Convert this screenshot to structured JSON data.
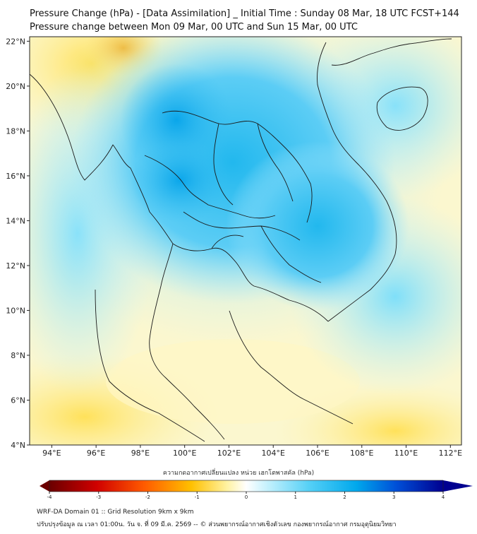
{
  "title": {
    "line1": "Pressure Change (hPa) - [Data Assimilation] _ Initial Time : Sunday 08 Mar, 18 UTC FCST+144",
    "line2": "Pressure change between Mon 09 Mar, 00 UTC and Sun 15 Mar, 00 UTC"
  },
  "map": {
    "lat_labels": [
      "22°N",
      "20°N",
      "18°N",
      "16°N",
      "14°N",
      "12°N",
      "10°N",
      "8°N",
      "6°N",
      "4°N"
    ],
    "lon_labels": [
      "94°E",
      "96°E",
      "98°E",
      "100°E",
      "102°E",
      "104°E",
      "106°E",
      "108°E",
      "110°E",
      "112°E"
    ],
    "lat_values": [
      22,
      20,
      18,
      16,
      14,
      12,
      10,
      8,
      6,
      4
    ],
    "lon_values": [
      94,
      96,
      98,
      100,
      102,
      104,
      106,
      108,
      110,
      112
    ],
    "extent": {
      "lon_min": 93.0,
      "lon_max": 112.5,
      "lat_min": 4.0,
      "lat_max": 22.2
    }
  },
  "colorbar": {
    "label": "ความกดอากาศเปลี่ยนแปลง หน่วย เฮกโตพาสคัล (hPa)",
    "range": [
      -4,
      4
    ],
    "tick_labels": [
      "-4",
      "-3",
      "-2",
      "-1",
      "0",
      "1",
      "2",
      "3",
      "4"
    ],
    "colors": {
      "neg_max": "#6b0000",
      "neg_mid": "#ff2a00",
      "neg_low": "#ffd400",
      "zero": "#ffffff",
      "pos_low": "#8fe6ff",
      "pos_mid": "#00b8f0",
      "pos_max": "#000090"
    }
  },
  "footer": {
    "line1": "WRF-DA Domain 01 :: Grid Resolution 9km x 9km",
    "line2": "ปรับปรุงข้อมูล ณ เวลา 01:00น. วัน จ. ที่ 09 มี.ค. 2569 -- © ส่วนพยากรณ์อากาศเชิงตัวเลข กองพยากรณ์อากาศ กรมอุตุนิยมวิทยา"
  }
}
